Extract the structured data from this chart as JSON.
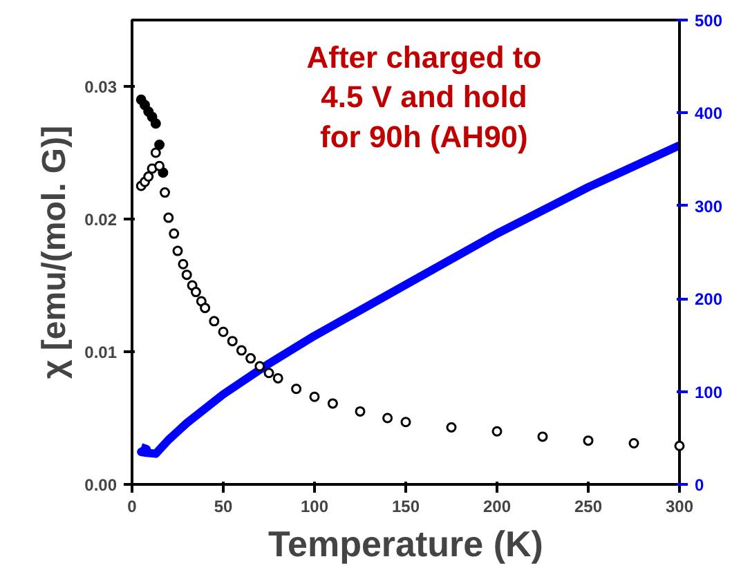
{
  "chart_data": {
    "type": "scatter",
    "xlabel": "Temperature (K)",
    "ylabel": "χ [emu/(mol. G)]",
    "annotations": [
      "After charged to\n4.5 V and hold\nfor 90h (AH90)"
    ],
    "xlim": [
      0,
      300
    ],
    "xticks": [
      0,
      50,
      100,
      150,
      200,
      250,
      300
    ],
    "ylim": [
      0,
      0.035
    ],
    "yticks": [
      {
        "value": 0,
        "label": "0.00"
      },
      {
        "value": 0.01,
        "label": "0.01"
      },
      {
        "value": 0.02,
        "label": "0.02"
      },
      {
        "value": 0.03,
        "label": "0.03"
      }
    ],
    "y2lim": [
      0,
      500
    ],
    "y2ticks": [
      0,
      100,
      200,
      300,
      400,
      500
    ],
    "grid": false,
    "series": [
      {
        "marker": "circle",
        "color": "#000000",
        "x": [
          5,
          7,
          9,
          11,
          13,
          15,
          17
        ],
        "values": [
          0.029,
          0.0286,
          0.0281,
          0.0277,
          0.0272,
          0.0256,
          0.0235
        ]
      },
      {
        "marker": "circle",
        "color": "#000000",
        "x": [
          5,
          7,
          9,
          11,
          13,
          15,
          18,
          20,
          23,
          25,
          28,
          30,
          33,
          35,
          38,
          40,
          45,
          50,
          55,
          60,
          65,
          70,
          75,
          80,
          90,
          100,
          110,
          125,
          140,
          150,
          175,
          200,
          225,
          250,
          275,
          300
        ],
        "values": [
          0.0225,
          0.0228,
          0.0232,
          0.0238,
          0.025,
          0.024,
          0.022,
          0.0201,
          0.0189,
          0.0176,
          0.0166,
          0.0158,
          0.015,
          0.0145,
          0.0138,
          0.0133,
          0.0123,
          0.0115,
          0.0108,
          0.0101,
          0.0095,
          0.0089,
          0.0084,
          0.008,
          0.0072,
          0.0066,
          0.0061,
          0.0055,
          0.005,
          0.0047,
          0.0043,
          0.004,
          0.0036,
          0.0033,
          0.0031,
          0.0029
        ]
      },
      {
        "type": "line",
        "axis": "y2",
        "color": "#0000ff",
        "marker": "none",
        "x": [
          5,
          8,
          5,
          8,
          13,
          20,
          30,
          50,
          75,
          100,
          150,
          200,
          250,
          300
        ],
        "values": [
          40,
          38,
          35,
          34,
          33,
          48,
          66,
          97,
          130,
          160,
          215,
          270,
          320,
          365
        ]
      }
    ]
  }
}
